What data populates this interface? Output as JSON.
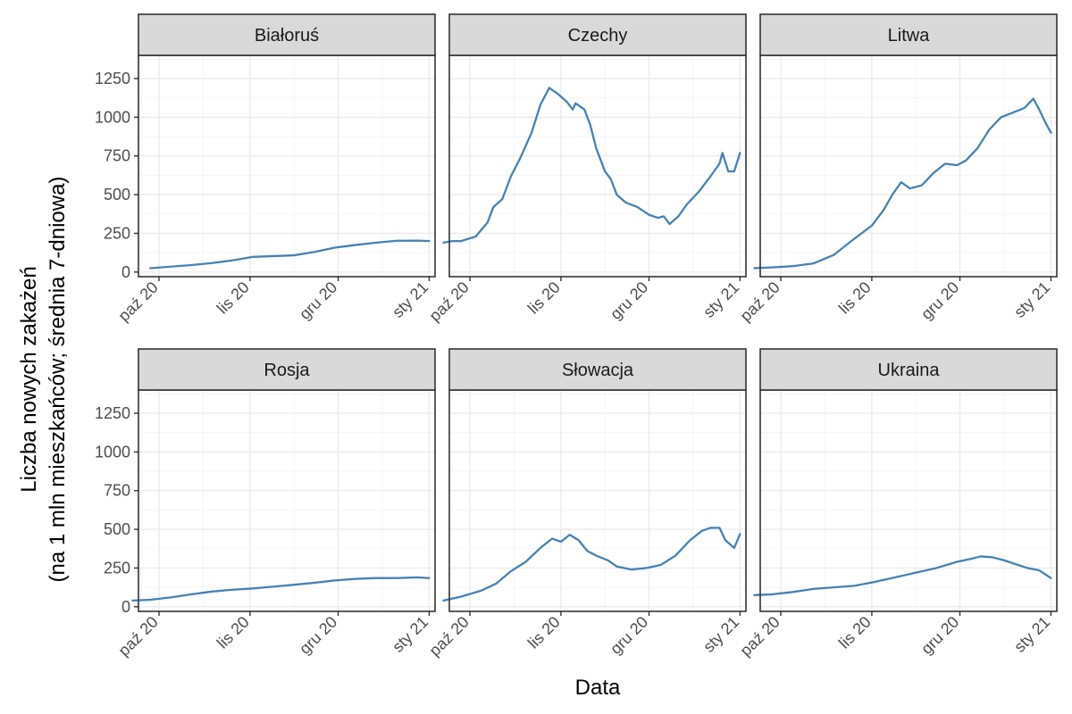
{
  "chart_data": {
    "type": "line",
    "xlabel": "Data",
    "ylabel_line1": "Liczba nowych zakażeń",
    "ylabel_line2": "(na 1 mln mieszkańców; średnia 7-dniowa)",
    "x_range": [
      "2020-09-24",
      "2021-01-03"
    ],
    "ylim": [
      -30,
      1400
    ],
    "y_ticks": [
      0,
      250,
      500,
      750,
      1000,
      1250
    ],
    "x_ticks": [
      {
        "date": "2020-10-01",
        "label": "paź 20"
      },
      {
        "date": "2020-11-01",
        "label": "lis 20"
      },
      {
        "date": "2020-12-01",
        "label": "gru 20"
      },
      {
        "date": "2021-01-01",
        "label": "sty 21"
      }
    ],
    "grid": true,
    "legend": "none",
    "line_color": "#4682b4",
    "panels": [
      {
        "title": "Białoruś",
        "points": [
          [
            "2020-09-28",
            25
          ],
          [
            "2020-10-05",
            35
          ],
          [
            "2020-10-12",
            45
          ],
          [
            "2020-10-19",
            58
          ],
          [
            "2020-10-26",
            75
          ],
          [
            "2020-11-02",
            98
          ],
          [
            "2020-11-09",
            103
          ],
          [
            "2020-11-16",
            108
          ],
          [
            "2020-11-23",
            130
          ],
          [
            "2020-11-30",
            158
          ],
          [
            "2020-12-07",
            175
          ],
          [
            "2020-12-14",
            190
          ],
          [
            "2020-12-21",
            202
          ],
          [
            "2020-12-28",
            203
          ],
          [
            "2021-01-01",
            200
          ]
        ]
      },
      {
        "title": "Czechy",
        "points": [
          [
            "2020-09-22",
            190
          ],
          [
            "2020-09-25",
            200
          ],
          [
            "2020-09-28",
            200
          ],
          [
            "2020-10-03",
            230
          ],
          [
            "2020-10-07",
            320
          ],
          [
            "2020-10-09",
            420
          ],
          [
            "2020-10-12",
            470
          ],
          [
            "2020-10-15",
            620
          ],
          [
            "2020-10-18",
            730
          ],
          [
            "2020-10-22",
            900
          ],
          [
            "2020-10-25",
            1080
          ],
          [
            "2020-10-28",
            1190
          ],
          [
            "2020-10-31",
            1150
          ],
          [
            "2020-11-03",
            1100
          ],
          [
            "2020-11-05",
            1050
          ],
          [
            "2020-11-06",
            1090
          ],
          [
            "2020-11-09",
            1050
          ],
          [
            "2020-11-11",
            950
          ],
          [
            "2020-11-13",
            800
          ],
          [
            "2020-11-16",
            650
          ],
          [
            "2020-11-18",
            600
          ],
          [
            "2020-11-20",
            500
          ],
          [
            "2020-11-23",
            450
          ],
          [
            "2020-11-27",
            420
          ],
          [
            "2020-12-01",
            370
          ],
          [
            "2020-12-04",
            350
          ],
          [
            "2020-12-06",
            360
          ],
          [
            "2020-12-08",
            310
          ],
          [
            "2020-12-11",
            360
          ],
          [
            "2020-12-14",
            440
          ],
          [
            "2020-12-18",
            520
          ],
          [
            "2020-12-22",
            620
          ],
          [
            "2020-12-25",
            700
          ],
          [
            "2020-12-26",
            770
          ],
          [
            "2020-12-28",
            650
          ],
          [
            "2020-12-30",
            650
          ],
          [
            "2021-01-01",
            770
          ]
        ]
      },
      {
        "title": "Litwa",
        "points": [
          [
            "2020-09-22",
            25
          ],
          [
            "2020-09-28",
            30
          ],
          [
            "2020-10-05",
            38
          ],
          [
            "2020-10-12",
            55
          ],
          [
            "2020-10-19",
            110
          ],
          [
            "2020-10-25",
            200
          ],
          [
            "2020-11-01",
            300
          ],
          [
            "2020-11-05",
            400
          ],
          [
            "2020-11-08",
            500
          ],
          [
            "2020-11-11",
            580
          ],
          [
            "2020-11-14",
            540
          ],
          [
            "2020-11-18",
            560
          ],
          [
            "2020-11-22",
            640
          ],
          [
            "2020-11-26",
            700
          ],
          [
            "2020-11-30",
            690
          ],
          [
            "2020-12-03",
            720
          ],
          [
            "2020-12-07",
            800
          ],
          [
            "2020-12-11",
            920
          ],
          [
            "2020-12-15",
            1000
          ],
          [
            "2020-12-19",
            1030
          ],
          [
            "2020-12-23",
            1060
          ],
          [
            "2020-12-26",
            1120
          ],
          [
            "2020-12-28",
            1050
          ],
          [
            "2020-12-30",
            970
          ],
          [
            "2021-01-01",
            900
          ]
        ]
      },
      {
        "title": "Rosja",
        "points": [
          [
            "2020-09-22",
            40
          ],
          [
            "2020-09-28",
            45
          ],
          [
            "2020-10-05",
            60
          ],
          [
            "2020-10-12",
            80
          ],
          [
            "2020-10-19",
            98
          ],
          [
            "2020-10-26",
            110
          ],
          [
            "2020-11-02",
            118
          ],
          [
            "2020-11-09",
            130
          ],
          [
            "2020-11-16",
            142
          ],
          [
            "2020-11-23",
            155
          ],
          [
            "2020-11-30",
            170
          ],
          [
            "2020-12-07",
            180
          ],
          [
            "2020-12-14",
            185
          ],
          [
            "2020-12-21",
            185
          ],
          [
            "2020-12-28",
            190
          ],
          [
            "2021-01-01",
            185
          ]
        ]
      },
      {
        "title": "Słowacja",
        "points": [
          [
            "2020-09-22",
            40
          ],
          [
            "2020-09-28",
            65
          ],
          [
            "2020-10-05",
            105
          ],
          [
            "2020-10-10",
            150
          ],
          [
            "2020-10-15",
            230
          ],
          [
            "2020-10-20",
            290
          ],
          [
            "2020-10-25",
            380
          ],
          [
            "2020-10-29",
            440
          ],
          [
            "2020-11-01",
            420
          ],
          [
            "2020-11-04",
            465
          ],
          [
            "2020-11-07",
            430
          ],
          [
            "2020-11-10",
            360
          ],
          [
            "2020-11-13",
            330
          ],
          [
            "2020-11-17",
            300
          ],
          [
            "2020-11-20",
            260
          ],
          [
            "2020-11-25",
            240
          ],
          [
            "2020-11-30",
            250
          ],
          [
            "2020-12-05",
            270
          ],
          [
            "2020-12-10",
            330
          ],
          [
            "2020-12-15",
            430
          ],
          [
            "2020-12-19",
            490
          ],
          [
            "2020-12-22",
            510
          ],
          [
            "2020-12-25",
            510
          ],
          [
            "2020-12-27",
            430
          ],
          [
            "2020-12-30",
            380
          ],
          [
            "2021-01-01",
            470
          ]
        ]
      },
      {
        "title": "Ukraina",
        "points": [
          [
            "2020-09-22",
            75
          ],
          [
            "2020-09-28",
            80
          ],
          [
            "2020-10-05",
            95
          ],
          [
            "2020-10-12",
            115
          ],
          [
            "2020-10-19",
            125
          ],
          [
            "2020-10-26",
            135
          ],
          [
            "2020-11-02",
            160
          ],
          [
            "2020-11-09",
            190
          ],
          [
            "2020-11-16",
            220
          ],
          [
            "2020-11-23",
            250
          ],
          [
            "2020-11-30",
            290
          ],
          [
            "2020-12-05",
            310
          ],
          [
            "2020-12-08",
            325
          ],
          [
            "2020-12-12",
            320
          ],
          [
            "2020-12-16",
            300
          ],
          [
            "2020-12-20",
            275
          ],
          [
            "2020-12-24",
            250
          ],
          [
            "2020-12-28",
            235
          ],
          [
            "2021-01-01",
            185
          ]
        ]
      }
    ]
  }
}
